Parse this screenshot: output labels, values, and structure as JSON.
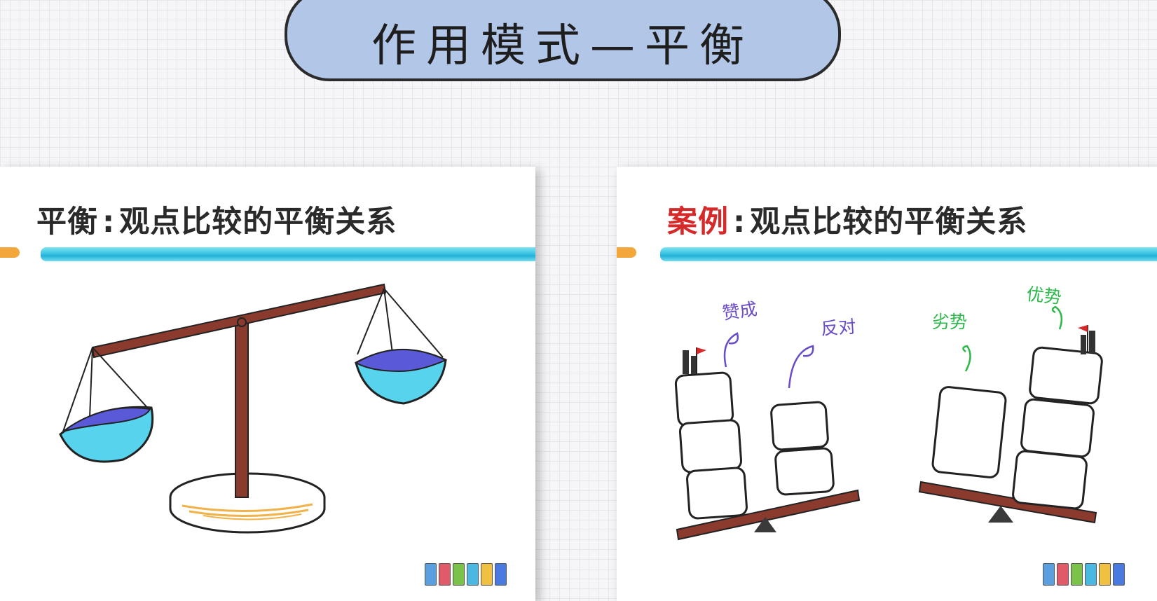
{
  "header": {
    "title": "作用模式—平衡"
  },
  "left_card": {
    "heading_keyword": "平衡",
    "heading_colon": ":",
    "heading_rest": "观点比较的平衡关系"
  },
  "right_card": {
    "heading_keyword": "案例",
    "heading_colon": ":",
    "heading_rest": "观点比较的平衡关系",
    "labels": {
      "for": "赞成",
      "against": "反对",
      "weakness": "劣势",
      "strength": "优势"
    }
  },
  "colors": {
    "title_pill": "#b2c6e8",
    "stripe_blue": "#3cc3e3",
    "tab_orange": "#f3a73a",
    "beam_brown": "#8b3a2e",
    "pan_cyan": "#58d3ee",
    "pan_purple": "#5a5ad8",
    "base_orange": "#f1b24a",
    "label_purple": "#6a4cc8",
    "label_green": "#2db84a",
    "keyword_red": "#d62a2a"
  },
  "icons": [
    "balance-scale-icon",
    "seesaw-icon",
    "flag-icon",
    "book-logo-icon"
  ],
  "books": [
    {
      "color": "#5aa0e0"
    },
    {
      "color": "#e05a6a"
    },
    {
      "color": "#7ac24a"
    },
    {
      "color": "#4ab8e0"
    },
    {
      "color": "#f0c040"
    },
    {
      "color": "#4a7ae0"
    }
  ]
}
